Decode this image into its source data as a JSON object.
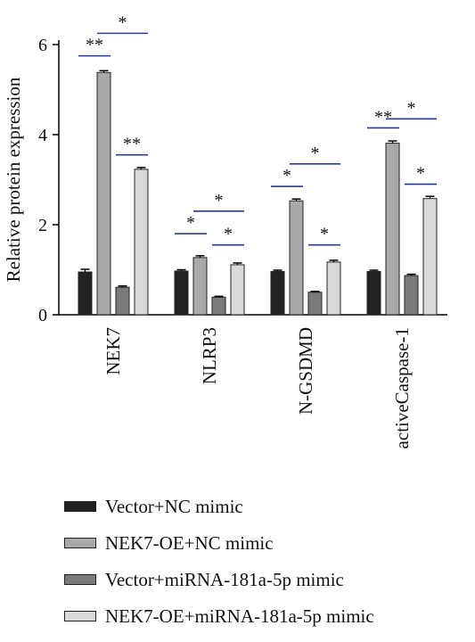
{
  "chart_data": {
    "type": "bar",
    "ylabel": "Relative protein expression",
    "ylim": [
      0,
      6
    ],
    "yticks": [
      0,
      2,
      4,
      6
    ],
    "categories": [
      "NEK7",
      "NLRP3",
      "N-GSDMD",
      "activeCaspase-1"
    ],
    "series": [
      {
        "name": "Vector+NC mimic",
        "color": "#222222",
        "values": [
          0.95,
          0.97,
          0.96,
          0.96
        ],
        "errors": [
          0.06,
          0.03,
          0.03,
          0.03
        ]
      },
      {
        "name": "NEK7-OE+NC mimic",
        "color": "#a9a9a9",
        "values": [
          5.38,
          1.27,
          2.53,
          3.81
        ],
        "errors": [
          0.04,
          0.04,
          0.04,
          0.05
        ]
      },
      {
        "name": "Vector+miRNA-181a-5p mimic",
        "color": "#7b7b7b",
        "values": [
          0.61,
          0.39,
          0.5,
          0.87
        ],
        "errors": [
          0.03,
          0.02,
          0.02,
          0.03
        ]
      },
      {
        "name": "NEK7-OE+miRNA-181a-5p mimic",
        "color": "#d9d9d9",
        "values": [
          3.23,
          1.11,
          1.17,
          2.58
        ],
        "errors": [
          0.04,
          0.04,
          0.04,
          0.05
        ]
      }
    ],
    "significance": [
      {
        "category": 0,
        "from": 0,
        "to": 1,
        "label": "**",
        "y": 5.75
      },
      {
        "category": 0,
        "from": 1,
        "to": 3,
        "label": "*",
        "y": 6.25
      },
      {
        "category": 0,
        "from": 2,
        "to": 3,
        "label": "**",
        "y": 3.55
      },
      {
        "category": 1,
        "from": 0,
        "to": 1,
        "label": "*",
        "y": 1.8
      },
      {
        "category": 1,
        "from": 1,
        "to": 3,
        "label": "*",
        "y": 2.3
      },
      {
        "category": 1,
        "from": 2,
        "to": 3,
        "label": "*",
        "y": 1.55
      },
      {
        "category": 2,
        "from": 0,
        "to": 1,
        "label": "*",
        "y": 2.85
      },
      {
        "category": 2,
        "from": 1,
        "to": 3,
        "label": "*",
        "y": 3.35
      },
      {
        "category": 2,
        "from": 2,
        "to": 3,
        "label": "*",
        "y": 1.55
      },
      {
        "category": 3,
        "from": 0,
        "to": 1,
        "label": "**",
        "y": 4.15
      },
      {
        "category": 3,
        "from": 1,
        "to": 3,
        "label": "*",
        "y": 4.35
      },
      {
        "category": 3,
        "from": 2,
        "to": 3,
        "label": "*",
        "y": 2.9
      }
    ],
    "significance_color": "#2b3a8f",
    "legend_position": "bottom"
  }
}
